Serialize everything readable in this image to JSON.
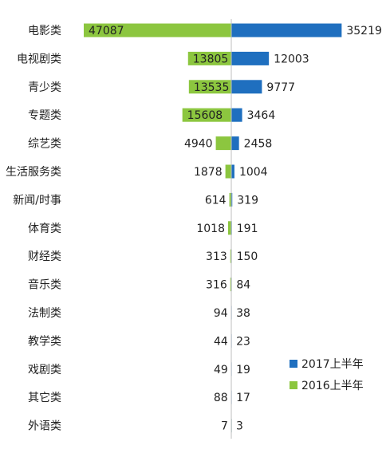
{
  "chart_data": {
    "type": "bar",
    "orientation": "horizontal-butterfly",
    "categories": [
      "电影类",
      "电视剧类",
      "青少类",
      "专题类",
      "综艺类",
      "生活服务类",
      "新闻/时事",
      "体育类",
      "财经类",
      "音乐类",
      "法制类",
      "教学类",
      "戏剧类",
      "其它类",
      "外语类"
    ],
    "series": [
      {
        "name": "2017上半年",
        "color": "#1f6fbf",
        "direction": "right",
        "values": [
          35219,
          12003,
          9777,
          3464,
          2458,
          1004,
          319,
          191,
          150,
          84,
          38,
          23,
          19,
          17,
          3
        ]
      },
      {
        "name": "2016上半年",
        "color": "#8cc63f",
        "direction": "left",
        "values": [
          47087,
          13805,
          13535,
          15608,
          4940,
          1878,
          614,
          1018,
          313,
          316,
          94,
          44,
          49,
          88,
          7
        ]
      }
    ],
    "legend_position": "right",
    "grid": false
  }
}
